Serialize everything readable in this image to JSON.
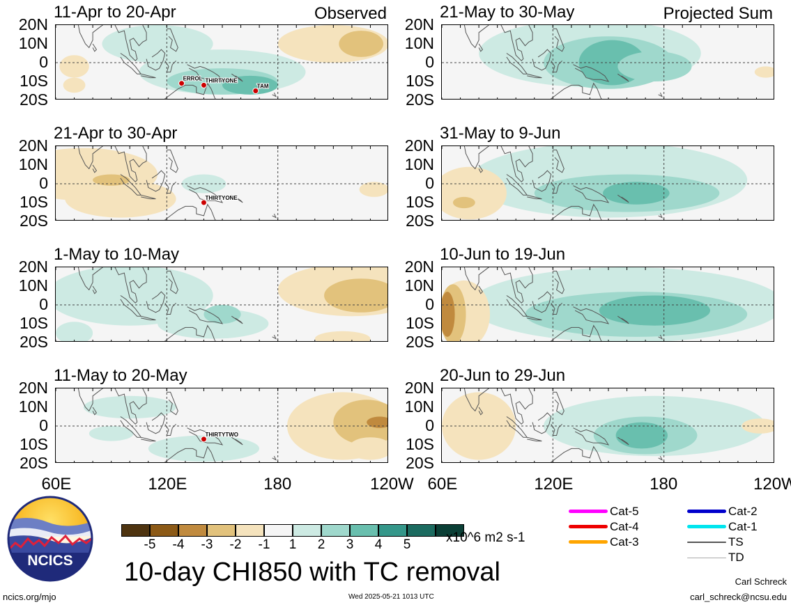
{
  "panels": [
    {
      "title": "11-Apr to 20-Apr",
      "note": "Observed",
      "storms": [
        {
          "name": "ERROL",
          "lon": 128,
          "lat": -11
        },
        {
          "name": "THIRTYONE",
          "lon": 140,
          "lat": -12
        },
        {
          "name": "TAM",
          "lon": 168,
          "lat": -15
        }
      ]
    },
    {
      "title": "21-Apr to 30-Apr",
      "note": "",
      "storms": [
        {
          "name": "THIRTYONE",
          "lon": 140,
          "lat": -10
        }
      ]
    },
    {
      "title": "1-May to 10-May",
      "note": "",
      "storms": []
    },
    {
      "title": "11-May to 20-May",
      "note": "",
      "storms": [
        {
          "name": "THIRTYTWO",
          "lon": 140,
          "lat": -7
        }
      ]
    },
    {
      "title": "21-May to 30-May",
      "note": "Projected Sum",
      "storms": []
    },
    {
      "title": "31-May to 9-Jun",
      "note": "",
      "storms": []
    },
    {
      "title": "10-Jun to 19-Jun",
      "note": "",
      "storms": []
    },
    {
      "title": "20-Jun to 29-Jun",
      "note": "",
      "storms": []
    }
  ],
  "lat_labels": [
    "20N",
    "10N",
    "0",
    "10S",
    "20S"
  ],
  "lon_labels": [
    "60E",
    "120E",
    "180",
    "120W"
  ],
  "colorbar": {
    "colors": [
      "#4e3410",
      "#8c5a17",
      "#c08a3e",
      "#e2c27c",
      "#f5e3bd",
      "#f5f5f5",
      "#cdeae3",
      "#9fd8cc",
      "#69bfae",
      "#35978a",
      "#1c6b60",
      "#0b3f36"
    ],
    "ticks": [
      "-5",
      "-4",
      "-3",
      "-2",
      "-1",
      "1",
      "2",
      "3",
      "4",
      "5"
    ],
    "units": "x10^6 m2 s-1"
  },
  "legend": [
    {
      "label": "Cat-5",
      "color": "#ff00ff"
    },
    {
      "label": "Cat-4",
      "color": "#ee0000"
    },
    {
      "label": "Cat-3",
      "color": "#ffa500"
    },
    {
      "label": "Cat-2",
      "color": "#0000cc"
    },
    {
      "label": "Cat-1",
      "color": "#00e5ee"
    },
    {
      "label": "TS",
      "color": "#555555"
    },
    {
      "label": "TD",
      "color": "#aaaaaa"
    }
  ],
  "main_title": "10-day CHI850 with TC removal",
  "logo_text": "NCICS",
  "footer": {
    "left": "ncics.org/mjo",
    "center": "Wed 2025-05-21 1013 UTC",
    "author": "Carl Schreck",
    "email": "carl_schreck@ncsu.edu"
  }
}
